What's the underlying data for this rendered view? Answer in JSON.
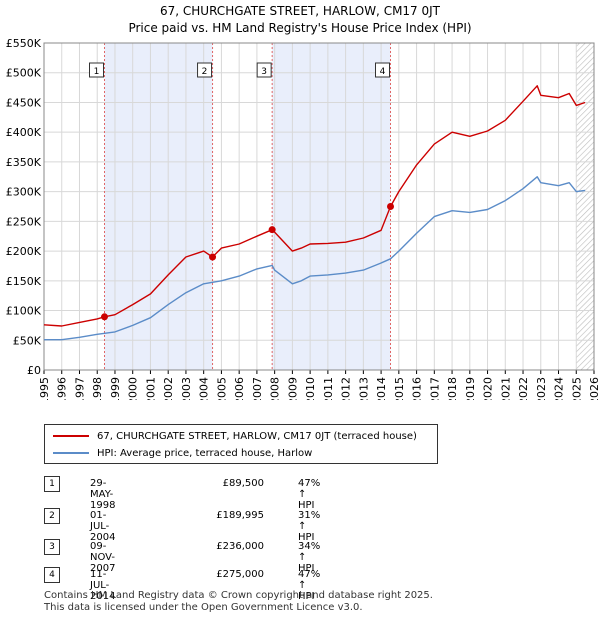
{
  "title_line1": "67, CHURCHGATE STREET, HARLOW, CM17 0JT",
  "title_line2": "Price paid vs. HM Land Registry's House Price Index (HPI)",
  "legend": [
    {
      "label": "67, CHURCHGATE STREET, HARLOW, CM17 0JT (terraced house)",
      "color": "#cc0000"
    },
    {
      "label": "HPI: Average price, terraced house, Harlow",
      "color": "#5b8cc8"
    }
  ],
  "sales": [
    {
      "num": "1",
      "date": "29-MAY-1998",
      "price": "£89,500",
      "hpi": "47% ↑ HPI"
    },
    {
      "num": "2",
      "date": "01-JUL-2004",
      "price": "£189,995",
      "hpi": "31% ↑ HPI"
    },
    {
      "num": "3",
      "date": "09-NOV-2007",
      "price": "£236,000",
      "hpi": "34% ↑ HPI"
    },
    {
      "num": "4",
      "date": "11-JUL-2014",
      "price": "£275,000",
      "hpi": "47% ↑ HPI"
    }
  ],
  "footer_line1": "Contains HM Land Registry data © Crown copyright and database right 2025.",
  "footer_line2": "This data is licensed under the Open Government Licence v3.0.",
  "chart_data": {
    "type": "line",
    "title": "67, CHURCHGATE STREET, HARLOW, CM17 0JT",
    "subtitle": "Price paid vs. HM Land Registry's House Price Index (HPI)",
    "xlim": [
      1995,
      2026
    ],
    "ylim": [
      0,
      550000
    ],
    "x_ticks": [
      1995,
      1996,
      1997,
      1998,
      1999,
      2000,
      2001,
      2002,
      2003,
      2004,
      2005,
      2006,
      2007,
      2008,
      2009,
      2010,
      2011,
      2012,
      2013,
      2014,
      2015,
      2016,
      2017,
      2018,
      2019,
      2020,
      2021,
      2022,
      2023,
      2024,
      2025,
      2026
    ],
    "y_ticks": [
      {
        "value": 0,
        "label": "£0"
      },
      {
        "value": 50000,
        "label": "£50K"
      },
      {
        "value": 100000,
        "label": "£100K"
      },
      {
        "value": 150000,
        "label": "£150K"
      },
      {
        "value": 200000,
        "label": "£200K"
      },
      {
        "value": 250000,
        "label": "£250K"
      },
      {
        "value": 300000,
        "label": "£300K"
      },
      {
        "value": 350000,
        "label": "£350K"
      },
      {
        "value": 400000,
        "label": "£400K"
      },
      {
        "value": 450000,
        "label": "£450K"
      },
      {
        "value": 500000,
        "label": "£500K"
      },
      {
        "value": 550000,
        "label": "£550K"
      }
    ],
    "shaded_ranges": [
      [
        1998.41,
        2004.5
      ],
      [
        2007.86,
        2014.53
      ]
    ],
    "hatched_from": 2025.0,
    "series": [
      {
        "name": "67, CHURCHGATE STREET, HARLOW, CM17 0JT (terraced house)",
        "color": "#cc0000",
        "points": [
          [
            1995,
            76000
          ],
          [
            1996,
            74000
          ],
          [
            1997,
            80000
          ],
          [
            1998,
            86000
          ],
          [
            1998.41,
            89500
          ],
          [
            1999,
            93000
          ],
          [
            2000,
            110000
          ],
          [
            2001,
            128000
          ],
          [
            2002,
            160000
          ],
          [
            2003,
            190000
          ],
          [
            2004,
            200000
          ],
          [
            2004.5,
            189995
          ],
          [
            2005,
            205000
          ],
          [
            2006,
            212000
          ],
          [
            2007,
            225000
          ],
          [
            2007.86,
            236000
          ],
          [
            2008,
            232000
          ],
          [
            2009,
            200000
          ],
          [
            2009.5,
            205000
          ],
          [
            2010,
            212000
          ],
          [
            2011,
            213000
          ],
          [
            2012,
            215000
          ],
          [
            2013,
            222000
          ],
          [
            2014,
            235000
          ],
          [
            2014.53,
            275000
          ],
          [
            2015,
            300000
          ],
          [
            2016,
            345000
          ],
          [
            2017,
            380000
          ],
          [
            2018,
            400000
          ],
          [
            2019,
            393000
          ],
          [
            2020,
            402000
          ],
          [
            2021,
            420000
          ],
          [
            2022,
            452000
          ],
          [
            2022.8,
            478000
          ],
          [
            2023,
            462000
          ],
          [
            2024,
            458000
          ],
          [
            2024.6,
            465000
          ],
          [
            2025,
            445000
          ],
          [
            2025.5,
            450000
          ]
        ]
      },
      {
        "name": "HPI: Average price, terraced house, Harlow",
        "color": "#5b8cc8",
        "points": [
          [
            1995,
            51000
          ],
          [
            1996,
            51000
          ],
          [
            1997,
            55000
          ],
          [
            1998,
            60000
          ],
          [
            1999,
            64000
          ],
          [
            2000,
            75000
          ],
          [
            2001,
            88000
          ],
          [
            2002,
            110000
          ],
          [
            2003,
            130000
          ],
          [
            2004,
            145000
          ],
          [
            2005,
            150000
          ],
          [
            2006,
            158000
          ],
          [
            2007,
            170000
          ],
          [
            2007.86,
            176000
          ],
          [
            2008,
            168000
          ],
          [
            2009,
            145000
          ],
          [
            2009.5,
            150000
          ],
          [
            2010,
            158000
          ],
          [
            2011,
            160000
          ],
          [
            2012,
            163000
          ],
          [
            2013,
            168000
          ],
          [
            2014,
            180000
          ],
          [
            2014.53,
            187000
          ],
          [
            2015,
            200000
          ],
          [
            2016,
            230000
          ],
          [
            2017,
            258000
          ],
          [
            2018,
            268000
          ],
          [
            2019,
            265000
          ],
          [
            2020,
            270000
          ],
          [
            2021,
            285000
          ],
          [
            2022,
            305000
          ],
          [
            2022.8,
            325000
          ],
          [
            2023,
            315000
          ],
          [
            2024,
            310000
          ],
          [
            2024.6,
            315000
          ],
          [
            2025,
            300000
          ],
          [
            2025.5,
            302000
          ]
        ]
      }
    ],
    "sale_markers": [
      {
        "label": "1",
        "x": 1998.41,
        "y": 89500
      },
      {
        "label": "2",
        "x": 2004.5,
        "y": 189995
      },
      {
        "label": "3",
        "x": 2007.86,
        "y": 236000
      },
      {
        "label": "4",
        "x": 2014.53,
        "y": 275000
      }
    ]
  }
}
